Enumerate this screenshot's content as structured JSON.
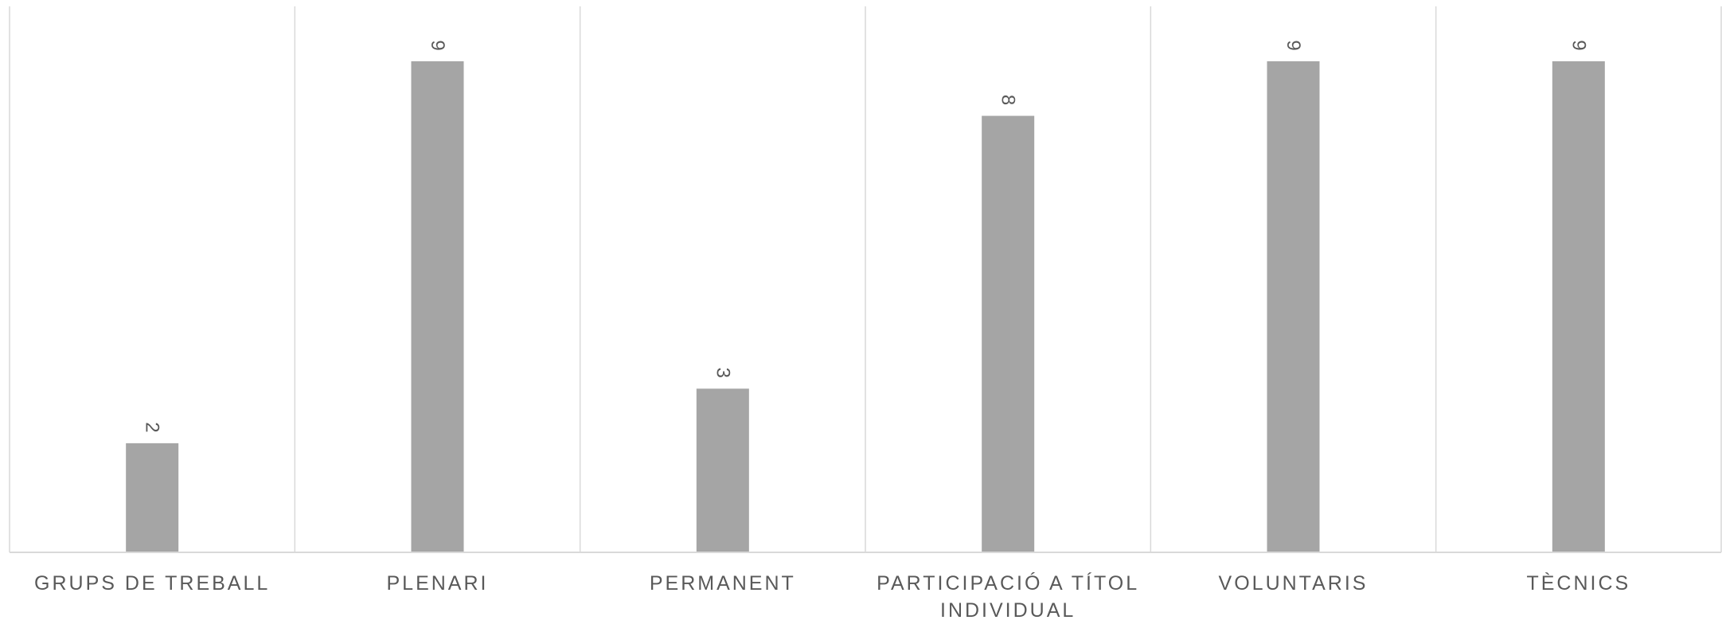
{
  "chart_data": {
    "type": "bar",
    "title": "",
    "xlabel": "",
    "ylabel": "",
    "categories": [
      [
        "GRUPS DE TREBALL"
      ],
      [
        "PLENARI"
      ],
      [
        "PERMANENT"
      ],
      [
        "PARTICIPACIÓ A TÍTOL",
        "INDIVIDUAL"
      ],
      [
        "VOLUNTARIS"
      ],
      [
        "TÈCNICS"
      ]
    ],
    "values": [
      2,
      9,
      3,
      8,
      9,
      9
    ],
    "ylim": [
      0,
      10
    ],
    "data_labels": [
      "2",
      "9",
      "3",
      "8",
      "9",
      "9"
    ],
    "data_label_orientation": "rotated-90",
    "bar_color": "#a5a5a5",
    "grid": "vertical category separators",
    "gridline_color": "#d9d9d9",
    "text_color": "#595959",
    "legend": "none"
  }
}
